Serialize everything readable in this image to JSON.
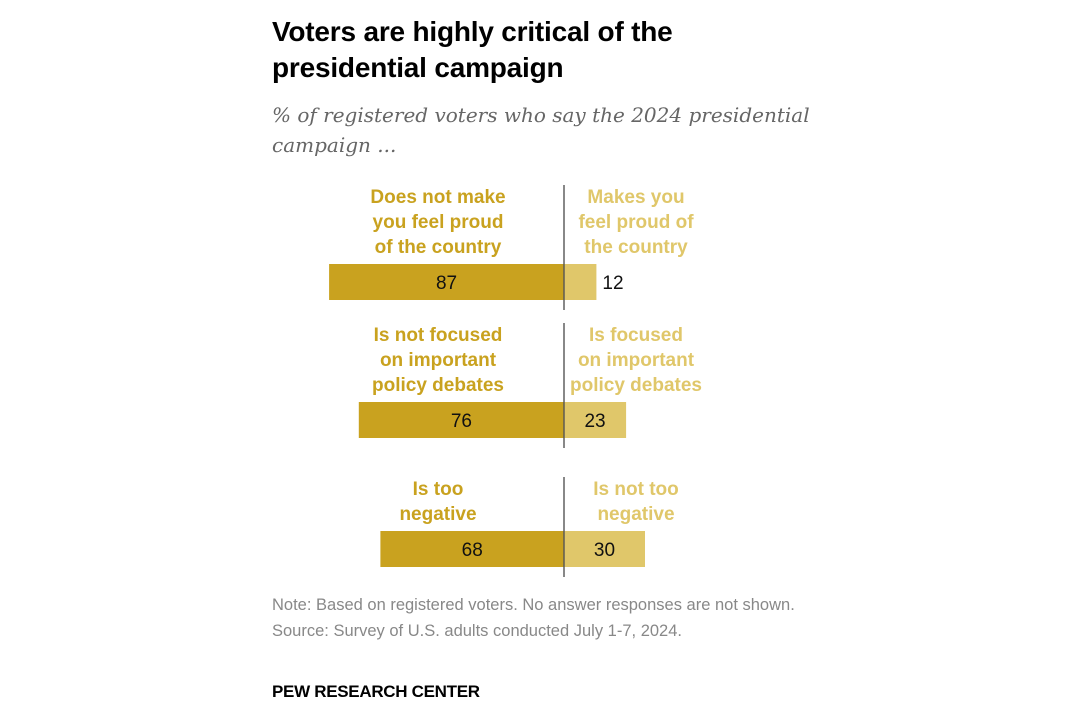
{
  "chart_data": {
    "type": "bar",
    "orientation": "horizontal-diverging",
    "title": "Voters are highly critical of the presidential campaign",
    "subtitle": "% of registered voters who say the 2024 presidential campaign ...",
    "xlabel": "",
    "ylabel": "",
    "xlim": [
      0,
      100
    ],
    "grid": false,
    "colors": {
      "negative": "#C9A21F",
      "positive": "#E0C76A",
      "divider": "#555555"
    },
    "groups": [
      {
        "left_label": [
          "Does not make",
          "you feel proud",
          "of the country"
        ],
        "right_label": [
          "Makes you",
          "feel proud of",
          "the country"
        ],
        "left_value": 87,
        "right_value": 12
      },
      {
        "left_label": [
          "Is not focused",
          "on important",
          "policy debates"
        ],
        "right_label": [
          "Is focused",
          "on important",
          "policy debates"
        ],
        "left_value": 76,
        "right_value": 23
      },
      {
        "left_label": [
          "Is too",
          "negative"
        ],
        "right_label": [
          "Is not too",
          "negative"
        ],
        "left_value": 68,
        "right_value": 30
      }
    ]
  },
  "header": {
    "title": "Voters are highly critical of the presidential campaign",
    "subtitle": "% of registered voters who say the 2024 presidential campaign ..."
  },
  "footer": {
    "note": "Note: Based on registered voters. No answer responses are not shown.",
    "source": "Source: Survey of U.S. adults conducted July 1-7, 2024.",
    "brand": "PEW RESEARCH CENTER"
  }
}
